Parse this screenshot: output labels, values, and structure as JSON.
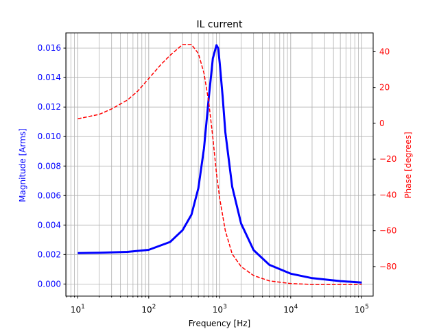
{
  "colors": {
    "magnitude": "#0000ff",
    "phase": "#ff0000",
    "grid": "#b0b0b0",
    "axes": "#000000"
  },
  "chart_data": {
    "type": "line",
    "title": "IL current",
    "xlabel": "Frequency [Hz]",
    "ylabel_left": "Magnitude [Arms]",
    "ylabel_right": "Phase [degrees]",
    "x_scale": "log",
    "xlim": [
      6.8,
      145000
    ],
    "ylim_left": [
      -0.00082,
      0.01703
    ],
    "ylim_right": [
      -96.5,
      50.5
    ],
    "grid": "on (major and minor x, major y)",
    "x_ticks": [
      {
        "base": "10",
        "exp": "1",
        "value": 10
      },
      {
        "base": "10",
        "exp": "2",
        "value": 100
      },
      {
        "base": "10",
        "exp": "3",
        "value": 1000
      },
      {
        "base": "10",
        "exp": "4",
        "value": 10000
      },
      {
        "base": "10",
        "exp": "5",
        "value": 100000
      }
    ],
    "y_ticks_left": [
      {
        "label": "0.000",
        "value": 0
      },
      {
        "label": "0.002",
        "value": 0.002
      },
      {
        "label": "0.004",
        "value": 0.004
      },
      {
        "label": "0.006",
        "value": 0.006
      },
      {
        "label": "0.008",
        "value": 0.008
      },
      {
        "label": "0.010",
        "value": 0.01
      },
      {
        "label": "0.012",
        "value": 0.012
      },
      {
        "label": "0.014",
        "value": 0.014
      },
      {
        "label": "0.016",
        "value": 0.016
      }
    ],
    "y_ticks_right": [
      {
        "label": "−80",
        "value": -80
      },
      {
        "label": "−60",
        "value": -60
      },
      {
        "label": "−40",
        "value": -40
      },
      {
        "label": "−20",
        "value": -20
      },
      {
        "label": "0",
        "value": 0
      },
      {
        "label": "20",
        "value": 20
      },
      {
        "label": "40",
        "value": 40
      }
    ],
    "series": [
      {
        "axis": "left",
        "style": "solid",
        "x": [
          10,
          20,
          50,
          100,
          200,
          300,
          400,
          500,
          600,
          700,
          800,
          900,
          950,
          1000,
          1100,
          1200,
          1500,
          2000,
          3000,
          5000,
          10000,
          20000,
          50000,
          100000
        ],
        "values": [
          0.0021,
          0.00212,
          0.00218,
          0.00232,
          0.00285,
          0.00365,
          0.0047,
          0.0065,
          0.0092,
          0.0126,
          0.0153,
          0.0162,
          0.016,
          0.015,
          0.0127,
          0.0103,
          0.0066,
          0.0041,
          0.0023,
          0.0013,
          0.0007,
          0.0004,
          0.0002,
          0.0001
        ]
      },
      {
        "axis": "right",
        "style": "dashed",
        "x": [
          10,
          20,
          30,
          50,
          70,
          100,
          150,
          200,
          300,
          400,
          500,
          600,
          700,
          800,
          900,
          1000,
          1200,
          1500,
          2000,
          3000,
          5000,
          10000,
          20000,
          50000,
          100000
        ],
        "values": [
          2.5,
          5,
          8,
          13,
          18,
          25,
          33,
          38,
          44,
          44,
          39,
          28,
          12,
          -8,
          -28,
          -42,
          -60,
          -73,
          -80,
          -85,
          -88,
          -89.5,
          -90,
          -90,
          -90
        ]
      }
    ]
  }
}
